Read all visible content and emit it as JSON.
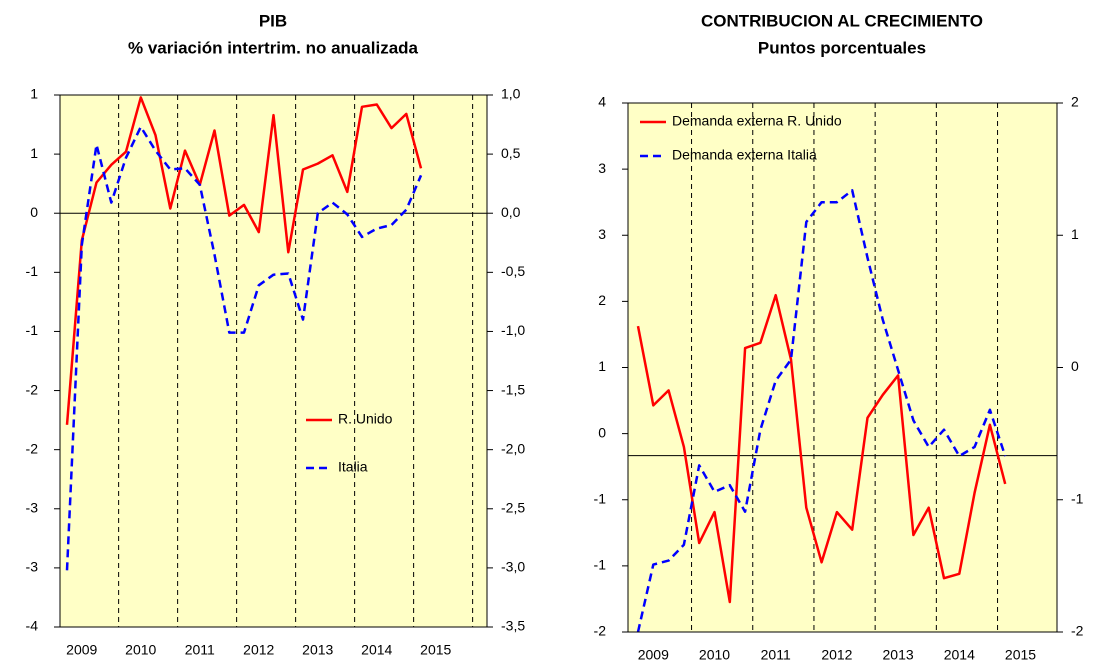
{
  "chart_data": [
    {
      "type": "line",
      "title": "PIB",
      "subtitle": "% variación intertrim. no anualizada",
      "categories": [
        null,
        "2009",
        null,
        null,
        null,
        "2010",
        null,
        null,
        null,
        "2011",
        null,
        null,
        null,
        "2012",
        null,
        null,
        null,
        "2013",
        null,
        null,
        null,
        "2014",
        null,
        null,
        null,
        "2015"
      ],
      "series": [
        {
          "name": "R. Unido",
          "color": "#ff0000",
          "line_style": "solid",
          "values": [
            -1.79,
            -0.23,
            0.26,
            0.41,
            0.52,
            0.98,
            0.66,
            0.04,
            0.53,
            0.24,
            0.7,
            -0.02,
            0.07,
            -0.16,
            0.83,
            -0.33,
            0.37,
            0.42,
            0.49,
            0.18,
            0.9,
            0.92,
            0.72,
            0.84,
            0.38,
            null
          ]
        },
        {
          "name": "Italia",
          "color": "#0000ff",
          "line_style": "dashed",
          "axis": "y2",
          "values": [
            -3.02,
            -0.27,
            0.58,
            0.09,
            0.47,
            0.73,
            0.53,
            0.37,
            0.38,
            0.24,
            -0.35,
            -1.01,
            -1.01,
            -0.61,
            -0.52,
            -0.51,
            -0.9,
            0.0,
            0.09,
            -0.01,
            -0.2,
            -0.13,
            -0.1,
            0.03,
            0.32,
            null
          ]
        }
      ],
      "ylim": [
        -3.5,
        1.0
      ],
      "yticks": [
        1,
        {
          "value": 0.5,
          "label": "1"
        },
        0,
        {
          "value": -0.5,
          "label": "-1"
        },
        -1,
        {
          "value": -1.5,
          "label": "-2"
        },
        -2,
        {
          "value": -2.5,
          "label": "-3"
        },
        -3,
        {
          "value": -3.5,
          "label": "-4"
        }
      ],
      "y2lim": [
        -3.5,
        1.0
      ],
      "y2ticks": [
        {
          "value": 1,
          "label": "1,0"
        },
        {
          "value": 0.5,
          "label": "0,5"
        },
        {
          "value": 0,
          "label": "0,0"
        },
        {
          "value": -0.5,
          "label": "-0,5"
        },
        {
          "value": -1,
          "label": "-1,0"
        },
        {
          "value": -1.5,
          "label": "-1,5"
        },
        {
          "value": -2,
          "label": "-2,0"
        },
        {
          "value": -2.5,
          "label": "-2,5"
        },
        {
          "value": -3,
          "label": "-3,0"
        },
        {
          "value": -3.5,
          "label": "-3,5"
        }
      ],
      "legend": "center right",
      "background": "#ffffc6"
    },
    {
      "type": "line",
      "title": "CONTRIBUCION AL CRECIMIENTO",
      "subtitle": "Puntos porcentuales",
      "categories": [
        null,
        "2009",
        null,
        null,
        null,
        "2010",
        null,
        null,
        null,
        "2011",
        null,
        null,
        null,
        "2012",
        null,
        null,
        null,
        "2013",
        null,
        null,
        null,
        "2014",
        null,
        null,
        null,
        "2015"
      ],
      "series": [
        {
          "name": "Demanda externa R. Unido",
          "color": "#ff0000",
          "line_style": "solid",
          "values": [
            1.47,
            0.57,
            0.74,
            0.1,
            -0.99,
            -0.64,
            -1.66,
            1.22,
            1.28,
            1.82,
            1.09,
            -0.59,
            -1.21,
            -0.64,
            -0.84,
            0.43,
            0.69,
            0.91,
            -0.9,
            -0.59,
            -1.39,
            -1.34,
            -0.42,
            0.35,
            -0.32,
            null
          ]
        },
        {
          "name": "Demanda externa Italia",
          "color": "#0000ff",
          "line_style": "dashed",
          "axis": "y2",
          "values": [
            -2.0,
            -1.49,
            -1.46,
            -1.34,
            -0.74,
            -0.94,
            -0.89,
            -1.09,
            -0.47,
            -0.1,
            0.06,
            1.1,
            1.25,
            1.25,
            1.34,
            0.83,
            0.36,
            -0.02,
            -0.4,
            -0.6,
            -0.47,
            -0.67,
            -0.6,
            -0.32,
            -0.67,
            null
          ]
        }
      ],
      "ylim": [
        -2,
        4
      ],
      "yticks": [
        4,
        {
          "value": 3.25,
          "label": "3"
        },
        {
          "value": 2.5,
          "label": "3"
        },
        {
          "value": 1.75,
          "label": "2"
        },
        1,
        {
          "value": 0.25,
          "label": "0"
        },
        {
          "value": -0.5,
          "label": "-1"
        },
        {
          "value": -1.25,
          "label": "-1"
        },
        -2
      ],
      "y2lim": [
        -2,
        2
      ],
      "y2ticks": [
        2,
        1,
        0,
        -1,
        -2
      ],
      "legend": "upper left",
      "background": "#ffffc6"
    }
  ]
}
